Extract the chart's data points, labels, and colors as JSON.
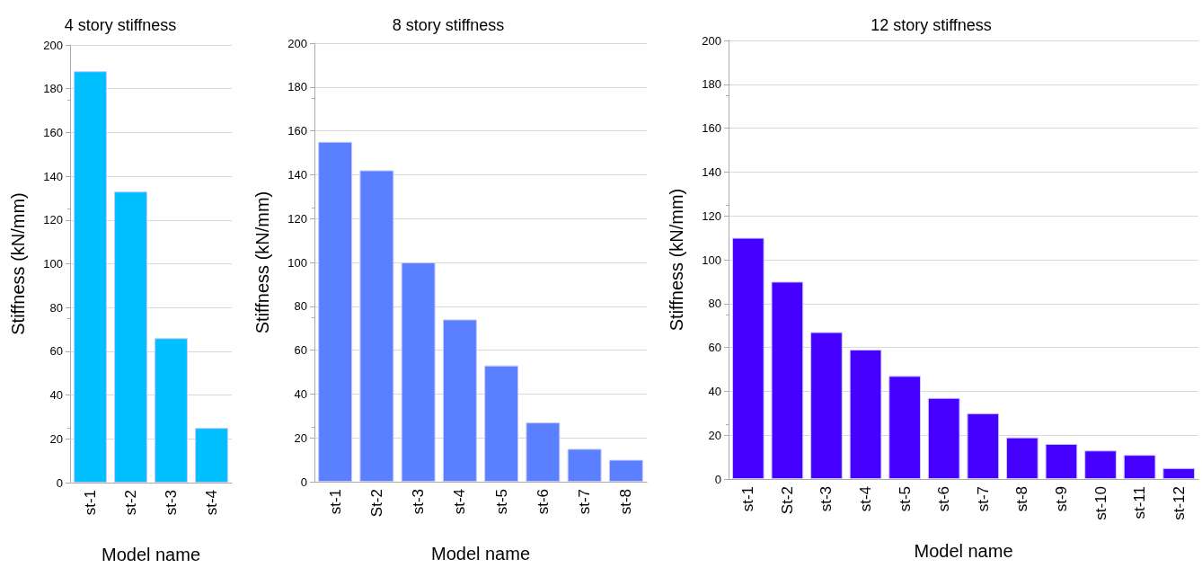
{
  "chart_data": [
    {
      "type": "bar",
      "title": "4 story stiffness",
      "xlabel": "Model name",
      "ylabel": "Stiffness (kN/mm)",
      "categories": [
        "st-1",
        "st-2",
        "st-3",
        "st-4"
      ],
      "values": [
        188,
        133,
        66,
        25
      ],
      "color": "#00bfff",
      "ylim": [
        0,
        200
      ],
      "yticks": [
        0,
        20,
        40,
        60,
        80,
        100,
        120,
        140,
        160,
        180,
        200
      ],
      "grid": "y"
    },
    {
      "type": "bar",
      "title": "8 story stiffness",
      "xlabel": "Model name",
      "ylabel": "Stiffness (kN/mm)",
      "categories": [
        "st-1",
        "St-2",
        "st-3",
        "st-4",
        "st-5",
        "st-6",
        "st-7",
        "st-8"
      ],
      "values": [
        155,
        142,
        100,
        74,
        53,
        27,
        15,
        10
      ],
      "color": "#5a7fff",
      "ylim": [
        0,
        200
      ],
      "yticks": [
        0,
        20,
        40,
        60,
        80,
        100,
        120,
        140,
        160,
        180,
        200
      ],
      "grid": "y"
    },
    {
      "type": "bar",
      "title": "12 story stiffness",
      "xlabel": "Model name",
      "ylabel": "Stiffness (kN/mm)",
      "categories": [
        "st-1",
        "St-2",
        "st-3",
        "st-4",
        "st-5",
        "st-6",
        "st-7",
        "st-8",
        "st-9",
        "st-10",
        "st-11",
        "st-12"
      ],
      "values": [
        110,
        90,
        67,
        59,
        47,
        37,
        30,
        19,
        16,
        13,
        11,
        5
      ],
      "color": "#4500ff",
      "ylim": [
        0,
        200
      ],
      "yticks": [
        0,
        20,
        40,
        60,
        80,
        100,
        120,
        140,
        160,
        180,
        200
      ],
      "grid": "y"
    }
  ]
}
